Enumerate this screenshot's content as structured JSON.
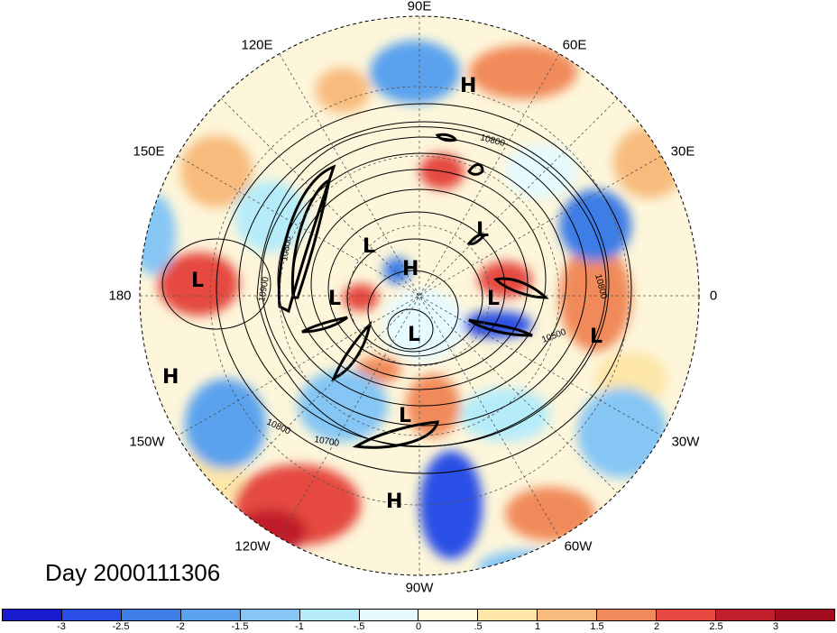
{
  "title": "Day 2000111306",
  "longitude_labels": [
    "90E",
    "60E",
    "120E",
    "150E",
    "30E",
    "180",
    "0",
    "150W",
    "30W",
    "120W",
    "60W",
    "90W"
  ],
  "pressure_centers": [
    "H",
    "L",
    "L",
    "H",
    "L",
    "L",
    "L",
    "L",
    "L",
    "L",
    "H",
    "L",
    "H"
  ],
  "contour_labels": [
    "10800",
    "10800",
    "10900",
    "10800",
    "10500",
    "10800",
    "10700"
  ],
  "colorbar": {
    "ticks": [
      "-3",
      "-2.5",
      "-2",
      "-1.5",
      "-1",
      "-.5",
      "0",
      ".5",
      "1",
      "1.5",
      "2",
      "2.5",
      "3"
    ],
    "colors": [
      "#1a1ad0",
      "#2a4fe6",
      "#3d7de6",
      "#5aa2ee",
      "#85c6f5",
      "#b6ecfa",
      "#e6fbff",
      "#fffbe0",
      "#fde6a8",
      "#f8bb7d",
      "#f18a5a",
      "#e5493f",
      "#c11f2c",
      "#a10c1e"
    ]
  }
}
